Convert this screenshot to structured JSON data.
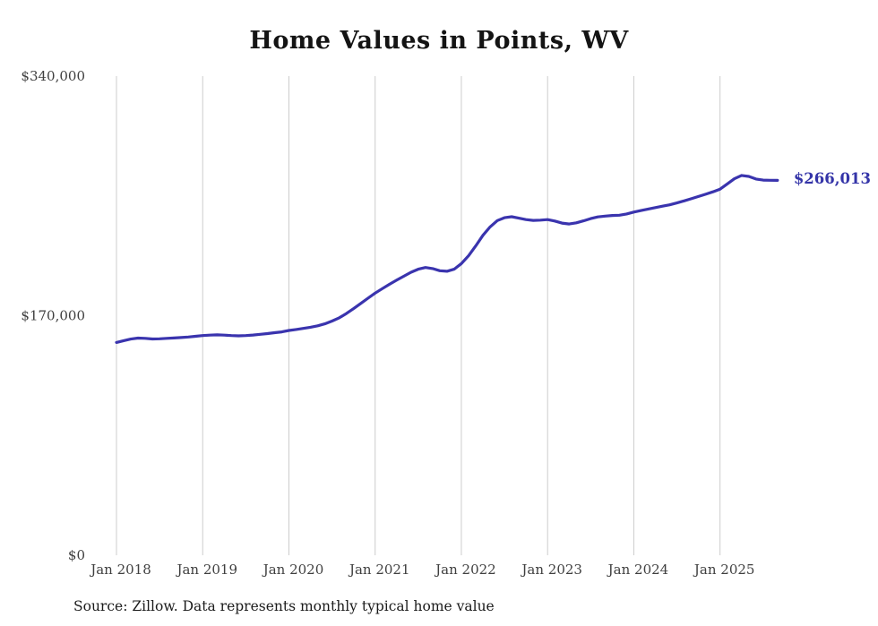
{
  "title": "Home Values in Points, WV",
  "source_note": "Source: Zillow. Data represents monthly typical home value",
  "end_label": "$266,013",
  "colors": {
    "line": "#3a34ae",
    "end_label": "#3434a8",
    "grid": "#cccccc",
    "tick_text": "#3f3f3f",
    "title_text": "#141414"
  },
  "chart_data": {
    "type": "line",
    "title": "Home Values in Points, WV",
    "xlabel": "",
    "ylabel": "",
    "ylim": [
      0,
      340000
    ],
    "y_ticks": [
      0,
      170000,
      340000
    ],
    "y_tick_labels": [
      "$0",
      "$170,000",
      "$340,000"
    ],
    "x_tick_labels": [
      "Jan 2018",
      "Jan 2019",
      "Jan 2020",
      "Jan 2021",
      "Jan 2022",
      "Jan 2023",
      "Jan 2024",
      "Jan 2025"
    ],
    "x_start": "2018-01",
    "x_end": "2025-09",
    "x_frequency": "monthly",
    "grid": "vertical-only",
    "legend": "none",
    "final_value": 266013,
    "series": [
      {
        "name": "Typical home value",
        "values": [
          151000,
          152300,
          153400,
          154100,
          153900,
          153500,
          153600,
          153900,
          154200,
          154500,
          154900,
          155400,
          155900,
          156200,
          156400,
          156200,
          155900,
          155700,
          155900,
          156300,
          156800,
          157300,
          157900,
          158500,
          159500,
          160200,
          161000,
          161800,
          162800,
          164200,
          166200,
          168500,
          171500,
          175000,
          178700,
          182400,
          186000,
          189200,
          192300,
          195200,
          198000,
          200800,
          203000,
          204200,
          203400,
          201900,
          201500,
          203000,
          207000,
          212500,
          219500,
          227000,
          233000,
          237500,
          239500,
          240200,
          239200,
          238200,
          237600,
          237800,
          238200,
          237200,
          235700,
          235100,
          235900,
          237300,
          238900,
          240100,
          240700,
          241100,
          241300,
          242200,
          243500,
          244600,
          245700,
          246700,
          247700,
          248700,
          250000,
          251500,
          253000,
          254600,
          256200,
          257900,
          259800,
          263500,
          267200,
          269500,
          268800,
          267000,
          266200,
          266100,
          266013
        ]
      }
    ]
  }
}
